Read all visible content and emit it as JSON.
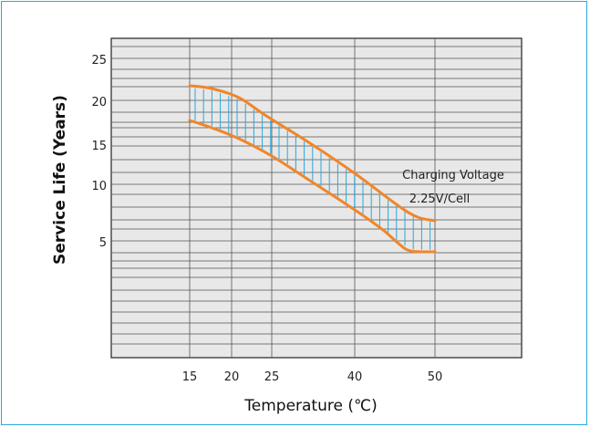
{
  "chart_data": {
    "type": "area",
    "title": "",
    "xlabel": "Temperature (℃)",
    "ylabel": "Service Life (Years)",
    "x_ticks": [
      15,
      20,
      25,
      40,
      50
    ],
    "y_ticks": [
      5,
      10,
      15,
      20,
      25
    ],
    "grid": true,
    "series": [
      {
        "x": [
          15,
          20,
          25,
          30,
          35,
          40,
          45,
          50
        ],
        "values": [
          21.7,
          20.8,
          18.2,
          14.6,
          11.0,
          8.0,
          6.2,
          5.8
        ]
      },
      {
        "x": [
          15,
          20,
          25,
          30,
          35,
          40,
          45,
          50
        ],
        "values": [
          17.7,
          16.0,
          13.6,
          10.4,
          7.4,
          4.8,
          3.4,
          3.4
        ]
      }
    ],
    "annotation": {
      "line1": "Charging Voltage",
      "line2": "2.25V/Cell"
    },
    "colors": {
      "curve": "#f0862a",
      "hatch": "#2aa7de",
      "grid": "#555555",
      "plot_bg": "#e8e8e8",
      "frame": "#29a8e0"
    }
  }
}
